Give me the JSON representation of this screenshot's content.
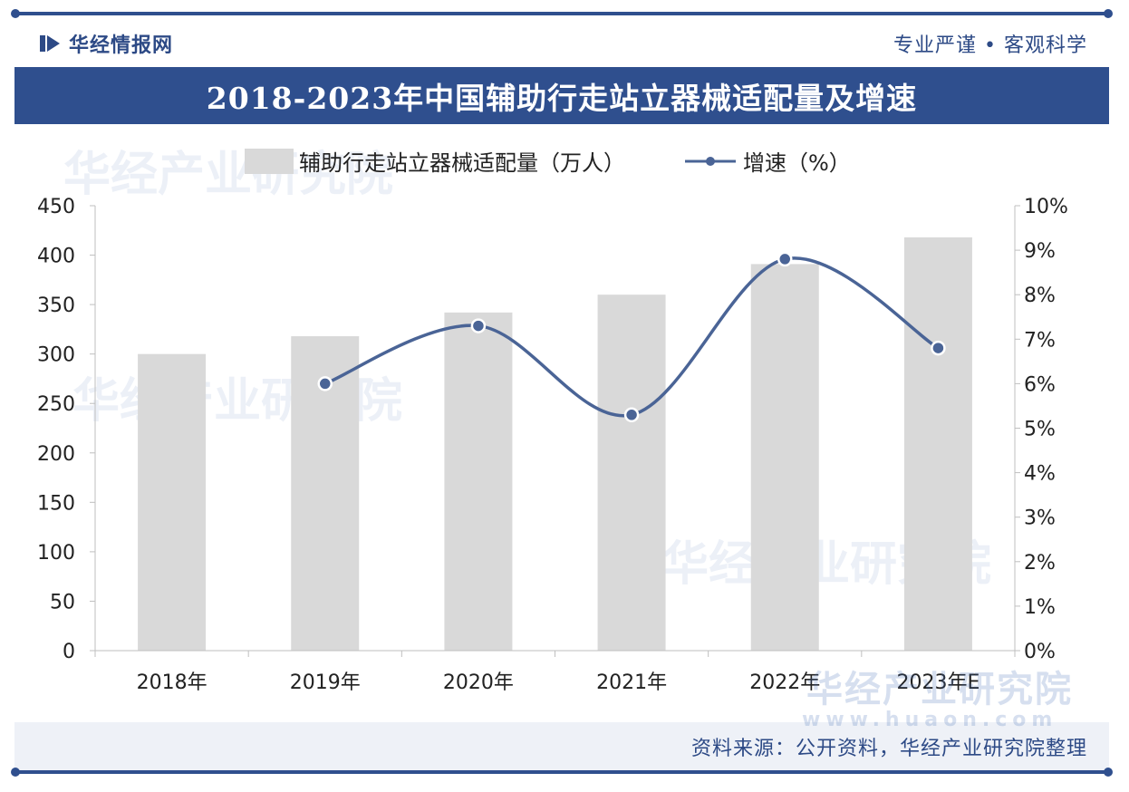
{
  "header": {
    "brand_name": "华经情报网",
    "tagline": "专业严谨 • 客观科学",
    "title": "2018-2023年中国辅助行走站立器械适配量及增速"
  },
  "watermark": {
    "text": "华经产业研究院",
    "url": "www.huaon.com"
  },
  "footer": {
    "source": "资料来源：公开资料，华经产业研究院整理"
  },
  "colors": {
    "brand": "#2f4f8e",
    "bar": "#d9d9d9",
    "line": "#4a6496"
  },
  "chart_data": {
    "type": "bar",
    "title": "2018-2023年中国辅助行走站立器械适配量及增速",
    "categories": [
      "2018年",
      "2019年",
      "2020年",
      "2021年",
      "2022年",
      "2023年E"
    ],
    "series": [
      {
        "name": "辅助行走站立器械适配量（万人）",
        "type": "bar",
        "axis": "left",
        "values": [
          300,
          318,
          342,
          360,
          391,
          418
        ]
      },
      {
        "name": "增速（%）",
        "type": "line",
        "axis": "right",
        "values": [
          null,
          6.0,
          7.3,
          5.3,
          8.8,
          6.8
        ]
      }
    ],
    "y_left": {
      "min": 0,
      "max": 450,
      "ticks": [
        0,
        50,
        100,
        150,
        200,
        250,
        300,
        350,
        400,
        450
      ]
    },
    "y_right": {
      "min": 0,
      "max": 10,
      "ticks": [
        "0%",
        "1%",
        "2%",
        "3%",
        "4%",
        "5%",
        "6%",
        "7%",
        "8%",
        "9%",
        "10%"
      ]
    },
    "legend": [
      "辅助行走站立器械适配量（万人）",
      "增速（%）"
    ],
    "legend_position": "top",
    "grid": false
  }
}
